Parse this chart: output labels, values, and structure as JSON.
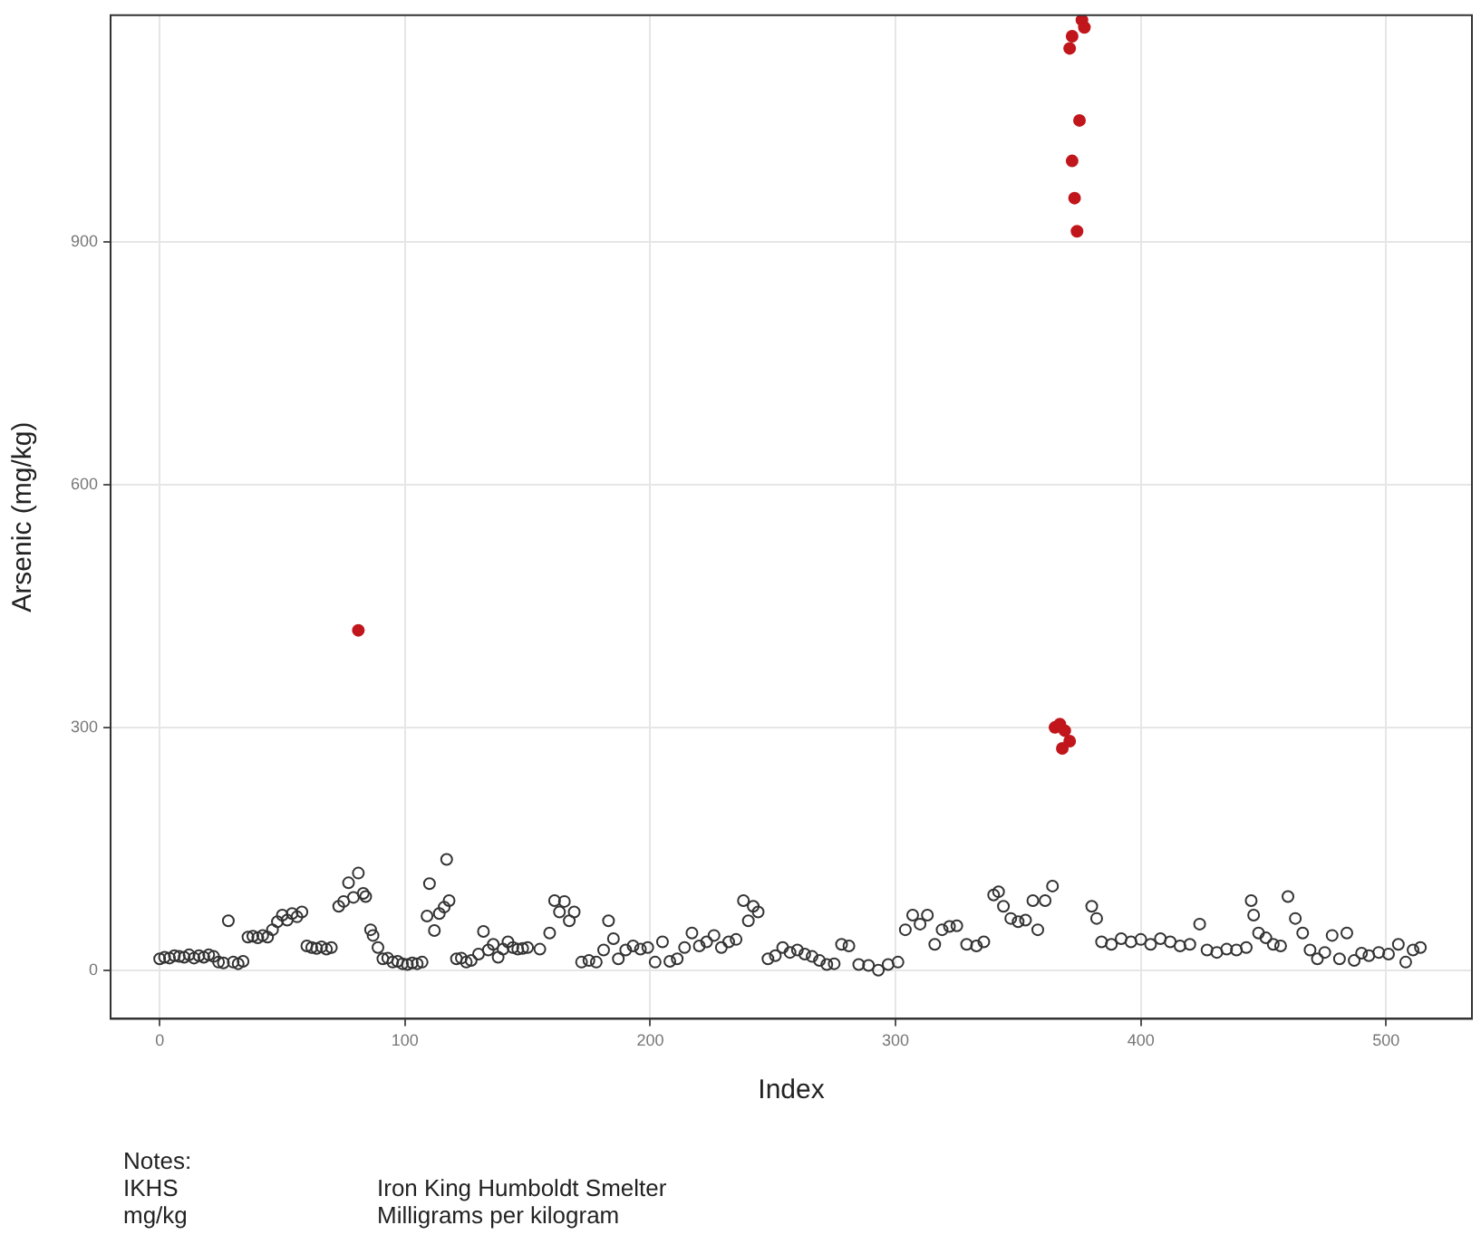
{
  "chart_data": {
    "type": "scatter",
    "xlabel": "Index",
    "ylabel": "Arsenic (mg/kg)",
    "xlim": [
      -20,
      535
    ],
    "xticks": [
      0,
      100,
      200,
      300,
      400,
      500
    ],
    "ylim": [
      -60,
      1180
    ],
    "yticks": [
      0,
      300,
      600,
      900
    ],
    "grid": true,
    "legend": false,
    "marker": "circle",
    "series": [
      {
        "color": "#333333",
        "x": [
          0,
          2,
          4,
          6,
          8,
          10,
          12,
          14,
          16,
          18,
          20,
          22,
          24,
          26,
          28,
          30,
          32,
          34,
          36,
          38,
          40,
          42,
          44,
          46,
          48,
          50,
          52,
          54,
          56,
          58,
          60,
          62,
          64,
          66,
          68,
          70,
          73,
          75,
          77,
          79,
          81,
          83,
          84,
          86,
          87,
          89,
          91,
          93,
          95,
          97,
          99,
          101,
          103,
          105,
          107,
          109,
          110,
          112,
          114,
          116,
          117,
          118,
          121,
          123,
          125,
          127,
          130,
          132,
          134,
          136,
          138,
          140,
          142,
          144,
          146,
          148,
          150,
          155,
          159,
          161,
          163,
          165,
          167,
          169,
          172,
          175,
          178,
          181,
          183,
          185,
          187,
          190,
          193,
          196,
          199,
          202,
          205,
          208,
          211,
          214,
          217,
          220,
          223,
          226,
          229,
          232,
          235,
          238,
          240,
          242,
          244,
          248,
          251,
          254,
          257,
          260,
          263,
          266,
          269,
          272,
          275,
          278,
          281,
          285,
          289,
          293,
          297,
          301,
          304,
          307,
          310,
          313,
          316,
          319,
          322,
          325,
          329,
          333,
          336,
          340,
          342,
          344,
          347,
          350,
          353,
          356,
          358,
          361,
          364,
          380,
          382,
          384,
          388,
          392,
          396,
          400,
          404,
          408,
          412,
          416,
          420,
          424,
          427,
          431,
          435,
          439,
          443,
          445,
          446,
          448,
          451,
          454,
          457,
          460,
          463,
          466,
          469,
          472,
          475,
          478,
          481,
          484,
          487,
          490,
          493,
          497,
          501,
          505,
          508,
          511,
          514
        ],
        "values": [
          14,
          16,
          15,
          18,
          17,
          16,
          19,
          15,
          18,
          16,
          19,
          17,
          10,
          9,
          61,
          10,
          8,
          11,
          41,
          42,
          40,
          43,
          41,
          50,
          60,
          68,
          62,
          70,
          66,
          72,
          30,
          28,
          27,
          29,
          26,
          28,
          79,
          85,
          108,
          90,
          120,
          95,
          91,
          50,
          43,
          28,
          14,
          15,
          10,
          11,
          8,
          7,
          9,
          8,
          10,
          67,
          107,
          49,
          70,
          78,
          137,
          86,
          14,
          15,
          10,
          12,
          20,
          48,
          25,
          32,
          16,
          26,
          35,
          28,
          26,
          27,
          28,
          26,
          46,
          86,
          72,
          85,
          61,
          72,
          10,
          12,
          10,
          25,
          61,
          39,
          14,
          25,
          30,
          26,
          28,
          10,
          35,
          11,
          14,
          28,
          46,
          30,
          35,
          43,
          28,
          35,
          38,
          86,
          61,
          79,
          72,
          14,
          18,
          28,
          22,
          25,
          20,
          17,
          12,
          7,
          8,
          32,
          30,
          7,
          6,
          0,
          7,
          10,
          50,
          68,
          57,
          68,
          32,
          50,
          54,
          55,
          32,
          30,
          35,
          93,
          97,
          79,
          64,
          60,
          62,
          86,
          50,
          86,
          104,
          79,
          64,
          35,
          32,
          39,
          35,
          38,
          32,
          39,
          35,
          30,
          32,
          57,
          25,
          22,
          26,
          25,
          28,
          86,
          68,
          46,
          40,
          32,
          30,
          91,
          64,
          46,
          25,
          14,
          22,
          43,
          14,
          46,
          12,
          21,
          18,
          22,
          20,
          32,
          10,
          25,
          28
        ]
      },
      {
        "color": "#c0161c",
        "x": [
          81,
          365,
          367,
          369,
          368,
          371,
          372,
          373,
          374,
          371,
          372,
          376,
          377,
          375
        ],
        "values": [
          420,
          300,
          304,
          296,
          274,
          283,
          1000,
          954,
          913,
          1139,
          1154,
          1174,
          1165,
          1050
        ]
      }
    ],
    "annotations": [
      "Notes:",
      "IKHS",
      "Iron King Humboldt Smelter",
      "mg/kg",
      "Milligrams per kilogram"
    ]
  }
}
